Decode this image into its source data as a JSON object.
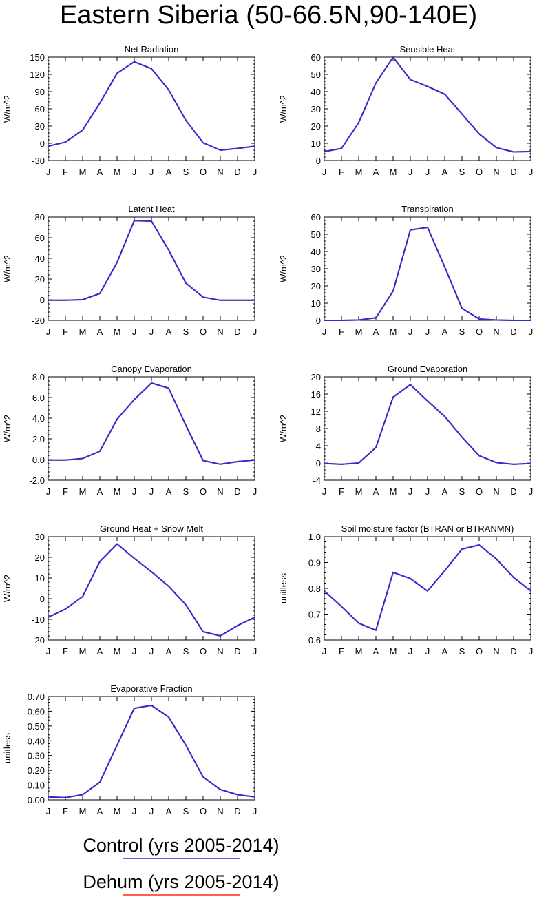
{
  "page_title": "Eastern Siberia (50-66.5N,90-140E)",
  "legend": {
    "entries": [
      {
        "label": "Control (yrs 2005-2014)",
        "color": "#2d2dd6"
      },
      {
        "label": "Dehum (yrs 2005-2014)",
        "color": "#ff2a1a"
      }
    ]
  },
  "chart_data": [
    {
      "type": "line",
      "title": "Net Radiation",
      "ylabel": "W/m^2",
      "categories": [
        "J",
        "F",
        "M",
        "A",
        "M",
        "J",
        "J",
        "A",
        "S",
        "O",
        "N",
        "D",
        "J"
      ],
      "yticks": [
        "-30",
        "0",
        "30",
        "60",
        "90",
        "120",
        "150"
      ],
      "ylim": [
        -30,
        150
      ],
      "series": [
        {
          "name": "Control (yrs 2005-2014)",
          "color": "#2d2dd6",
          "values": [
            -5,
            2,
            23,
            70,
            122,
            142,
            130,
            93,
            40,
            1,
            -12,
            -9,
            -5
          ]
        },
        {
          "name": "Dehum (yrs 2005-2014)",
          "color": "#ff2a1a",
          "values": [
            -5,
            2,
            23,
            70,
            122,
            142,
            130,
            93,
            40,
            1,
            -12,
            -9,
            -5
          ]
        }
      ]
    },
    {
      "type": "line",
      "title": "Sensible Heat",
      "ylabel": "W/m^2",
      "categories": [
        "J",
        "F",
        "M",
        "A",
        "M",
        "J",
        "J",
        "A",
        "S",
        "O",
        "N",
        "D",
        "J"
      ],
      "yticks": [
        "0",
        "10",
        "20",
        "30",
        "40",
        "50",
        "60"
      ],
      "ylim": [
        0,
        60
      ],
      "series": [
        {
          "name": "Control (yrs 2005-2014)",
          "color": "#2d2dd6",
          "values": [
            5.2,
            7,
            22,
            45,
            60,
            47,
            43,
            38.5,
            27,
            15.5,
            7.5,
            5,
            5.2
          ]
        },
        {
          "name": "Dehum (yrs 2005-2014)",
          "color": "#ff2a1a",
          "values": [
            5.2,
            7,
            22,
            45,
            60,
            47,
            43,
            38.5,
            27,
            15.5,
            7.5,
            5,
            5.2
          ]
        }
      ]
    },
    {
      "type": "line",
      "title": "Latent Heat",
      "ylabel": "W/m^2",
      "categories": [
        "J",
        "F",
        "M",
        "A",
        "M",
        "J",
        "J",
        "A",
        "S",
        "O",
        "N",
        "D",
        "J"
      ],
      "yticks": [
        "-20",
        "0",
        "20",
        "40",
        "60",
        "80"
      ],
      "ylim": [
        -20,
        80
      ],
      "series": [
        {
          "name": "Control (yrs 2005-2014)",
          "color": "#2d2dd6",
          "values": [
            -0.5,
            -0.5,
            0,
            6,
            36,
            76.5,
            76,
            48,
            16,
            2.5,
            -0.5,
            -0.5,
            -0.5
          ]
        },
        {
          "name": "Dehum (yrs 2005-2014)",
          "color": "#ff2a1a",
          "values": [
            -0.5,
            -0.5,
            0,
            6,
            36,
            76.5,
            76,
            48,
            16,
            2.5,
            -0.5,
            -0.5,
            -0.5
          ]
        }
      ]
    },
    {
      "type": "line",
      "title": "Transpiration",
      "ylabel": "W/m^2",
      "categories": [
        "J",
        "F",
        "M",
        "A",
        "M",
        "J",
        "J",
        "A",
        "S",
        "O",
        "N",
        "D",
        "J"
      ],
      "yticks": [
        "0",
        "10",
        "20",
        "30",
        "40",
        "50",
        "60"
      ],
      "ylim": [
        0,
        60
      ],
      "series": [
        {
          "name": "Control (yrs 2005-2014)",
          "color": "#2d2dd6",
          "values": [
            0,
            0,
            0.2,
            1.5,
            17,
            52.5,
            54,
            31,
            7,
            0.8,
            0.2,
            0,
            0
          ]
        },
        {
          "name": "Dehum (yrs 2005-2014)",
          "color": "#ff2a1a",
          "values": [
            0,
            0,
            0.2,
            1.5,
            17,
            52.5,
            54,
            31,
            7,
            0.8,
            0.2,
            0,
            0
          ]
        }
      ]
    },
    {
      "type": "line",
      "title": "Canopy Evaporation",
      "ylabel": "W/m^2",
      "categories": [
        "J",
        "F",
        "M",
        "A",
        "M",
        "J",
        "J",
        "A",
        "S",
        "O",
        "N",
        "D",
        "J"
      ],
      "yticks": [
        "-2.0",
        "0.0",
        "2.0",
        "4.0",
        "6.0",
        "8.0"
      ],
      "ylim": [
        -2,
        8
      ],
      "series": [
        {
          "name": "Control (yrs 2005-2014)",
          "color": "#2d2dd6",
          "values": [
            -0.05,
            -0.05,
            0.1,
            0.8,
            3.9,
            5.8,
            7.4,
            6.9,
            3.3,
            -0.1,
            -0.45,
            -0.2,
            -0.05
          ]
        },
        {
          "name": "Dehum (yrs 2005-2014)",
          "color": "#ff2a1a",
          "values": [
            -0.05,
            -0.05,
            0.1,
            0.8,
            3.9,
            5.8,
            7.4,
            6.9,
            3.3,
            -0.1,
            -0.45,
            -0.2,
            -0.05
          ]
        }
      ]
    },
    {
      "type": "line",
      "title": "Ground Evaporation",
      "ylabel": "W/m^2",
      "categories": [
        "J",
        "F",
        "M",
        "A",
        "M",
        "J",
        "J",
        "A",
        "S",
        "O",
        "N",
        "D",
        "J"
      ],
      "yticks": [
        "-4",
        "0",
        "4",
        "8",
        "12",
        "16",
        "20"
      ],
      "ylim": [
        -4,
        20
      ],
      "series": [
        {
          "name": "Control (yrs 2005-2014)",
          "color": "#2d2dd6",
          "values": [
            -0.1,
            -0.3,
            0,
            3.6,
            15.3,
            18.2,
            14.4,
            10.8,
            6,
            1.7,
            0.1,
            -0.3,
            -0.1
          ]
        },
        {
          "name": "Dehum (yrs 2005-2014)",
          "color": "#ff2a1a",
          "values": [
            -0.1,
            -0.3,
            0,
            3.6,
            15.3,
            18.2,
            14.4,
            10.8,
            6,
            1.7,
            0.1,
            -0.3,
            -0.1
          ]
        }
      ]
    },
    {
      "type": "line",
      "title": "Ground Heat + Snow Melt",
      "ylabel": "W/m^2",
      "categories": [
        "J",
        "F",
        "M",
        "A",
        "M",
        "J",
        "J",
        "A",
        "S",
        "O",
        "N",
        "D",
        "J"
      ],
      "yticks": [
        "-20",
        "-10",
        "0",
        "10",
        "20",
        "30"
      ],
      "ylim": [
        -20,
        30
      ],
      "series": [
        {
          "name": "Control (yrs 2005-2014)",
          "color": "#2d2dd6",
          "values": [
            -9,
            -5,
            1,
            18,
            26.5,
            19.5,
            13,
            6,
            -3,
            -16,
            -18,
            -13,
            -9
          ]
        },
        {
          "name": "Dehum (yrs 2005-2014)",
          "color": "#ff2a1a",
          "values": [
            -9,
            -5,
            1,
            18,
            26.5,
            19.5,
            13,
            6,
            -3,
            -16,
            -18,
            -13,
            -9
          ]
        }
      ]
    },
    {
      "type": "line",
      "title": "Soil moisture factor (BTRAN or BTRANMN)",
      "ylabel": "unitless",
      "categories": [
        "J",
        "F",
        "M",
        "A",
        "M",
        "J",
        "J",
        "A",
        "S",
        "O",
        "N",
        "D",
        "J"
      ],
      "yticks": [
        "0.6",
        "0.7",
        "0.8",
        "0.9",
        "1.0"
      ],
      "ylim": [
        0.6,
        1.0
      ],
      "series": [
        {
          "name": "Control (yrs 2005-2014)",
          "color": "#2d2dd6",
          "values": [
            0.79,
            0.73,
            0.665,
            0.638,
            0.862,
            0.838,
            0.79,
            0.868,
            0.952,
            0.968,
            0.914,
            0.842,
            0.79
          ]
        },
        {
          "name": "Dehum (yrs 2005-2014)",
          "color": "#ff2a1a",
          "values": [
            0.79,
            0.73,
            0.665,
            0.638,
            0.862,
            0.838,
            0.79,
            0.868,
            0.952,
            0.968,
            0.914,
            0.842,
            0.79
          ]
        }
      ]
    },
    {
      "type": "line",
      "title": "Evaporative Fraction",
      "ylabel": "unitless",
      "categories": [
        "J",
        "F",
        "M",
        "A",
        "M",
        "J",
        "J",
        "A",
        "S",
        "O",
        "N",
        "D",
        "J"
      ],
      "yticks": [
        "0.00",
        "0.10",
        "0.20",
        "0.30",
        "0.40",
        "0.50",
        "0.60",
        "0.70"
      ],
      "ylim": [
        0,
        0.7
      ],
      "series": [
        {
          "name": "Control (yrs 2005-2014)",
          "color": "#2d2dd6",
          "values": [
            0.02,
            0.015,
            0.035,
            0.12,
            0.37,
            0.62,
            0.64,
            0.56,
            0.37,
            0.155,
            0.07,
            0.035,
            0.02
          ]
        },
        {
          "name": "Dehum (yrs 2005-2014)",
          "color": "#ff2a1a",
          "values": [
            0.02,
            0.015,
            0.035,
            0.12,
            0.37,
            0.62,
            0.64,
            0.56,
            0.37,
            0.155,
            0.07,
            0.035,
            0.02
          ]
        }
      ]
    }
  ]
}
